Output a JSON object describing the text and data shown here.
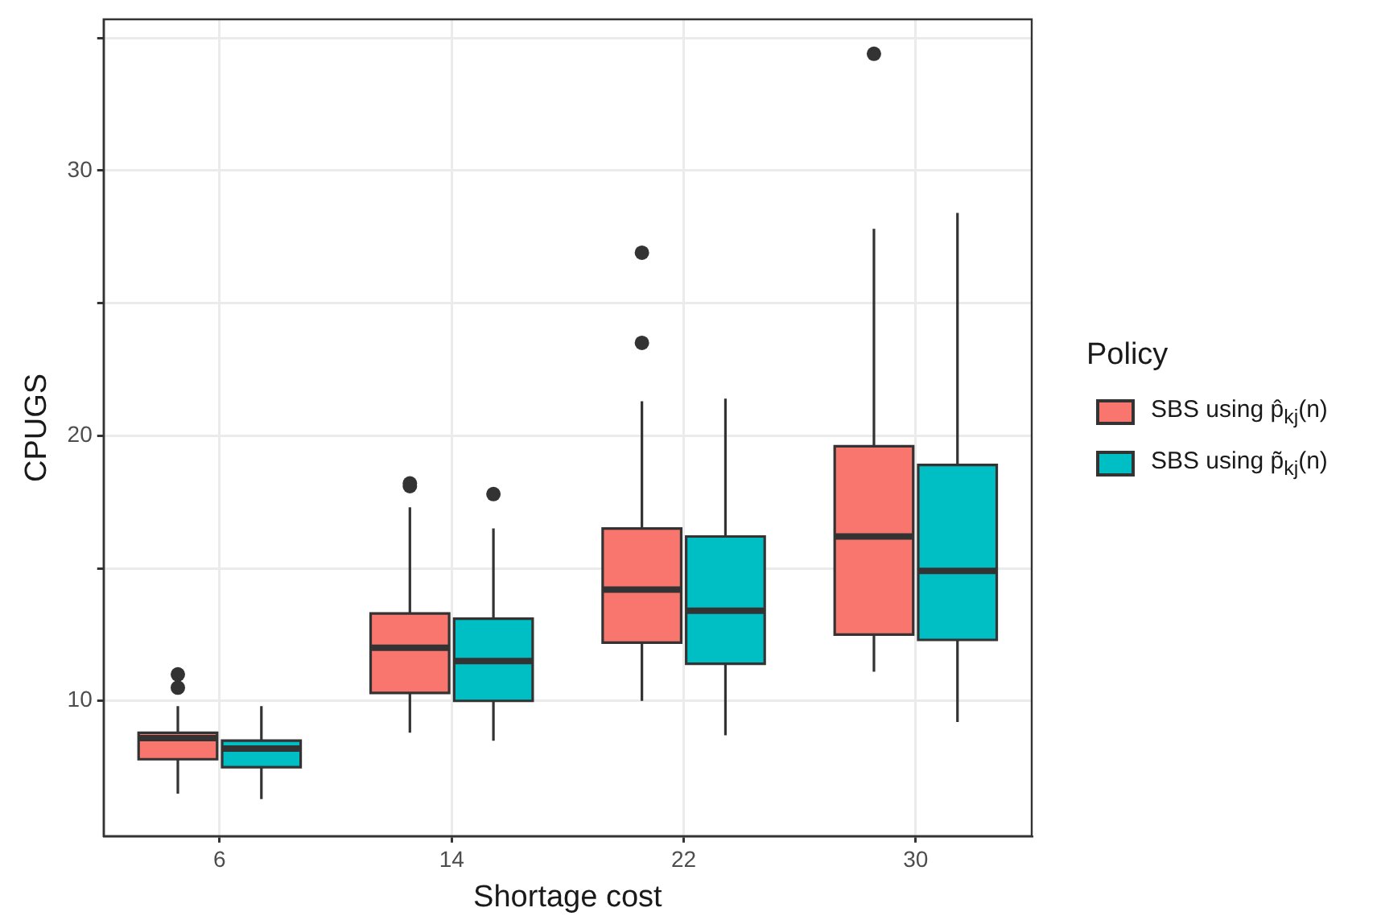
{
  "chart_data": {
    "type": "box",
    "xlabel": "Shortage cost",
    "ylabel": "CPUGS",
    "legend_title": "Policy",
    "legend": "right",
    "grid": true,
    "categories": [
      "6",
      "14",
      "22",
      "30"
    ],
    "ylim": [
      4.9,
      35.7
    ],
    "yticks": [
      10,
      {
        "value": 15,
        "label": null
      },
      20,
      {
        "value": 25,
        "label": null
      },
      30,
      {
        "value": 35,
        "label": null
      }
    ],
    "series": [
      {
        "name": "SBS using p̂$_{kj}$(n)",
        "color": "#f8766d",
        "boxes": [
          {
            "low": 6.5,
            "q1": 7.8,
            "median": 8.6,
            "q3": 8.8,
            "high": 9.8,
            "outliers": [
              10.5,
              11.0
            ]
          },
          {
            "low": 8.8,
            "q1": 10.3,
            "median": 12.0,
            "q3": 13.3,
            "high": 17.3,
            "outliers": [
              18.1,
              18.2
            ]
          },
          {
            "low": 10.0,
            "q1": 12.2,
            "median": 14.2,
            "q3": 16.5,
            "high": 21.3,
            "outliers": [
              23.5,
              26.9
            ]
          },
          {
            "low": 11.1,
            "q1": 12.5,
            "median": 16.2,
            "q3": 19.6,
            "high": 27.8,
            "outliers": [
              34.4
            ]
          }
        ]
      },
      {
        "name": "SBS using p̃$_{kj}$(n)",
        "color": "#00bfc4",
        "boxes": [
          {
            "low": 6.3,
            "q1": 7.5,
            "median": 8.2,
            "q3": 8.5,
            "high": 9.8
          },
          {
            "low": 8.5,
            "q1": 10.0,
            "median": 11.5,
            "q3": 13.1,
            "high": 16.5,
            "outliers": [
              17.8
            ]
          },
          {
            "low": 8.7,
            "q1": 11.4,
            "median": 13.4,
            "q3": 16.2,
            "high": 21.4
          },
          {
            "low": 9.2,
            "q1": 12.3,
            "median": 14.9,
            "q3": 18.9,
            "high": 28.4
          }
        ]
      }
    ]
  }
}
